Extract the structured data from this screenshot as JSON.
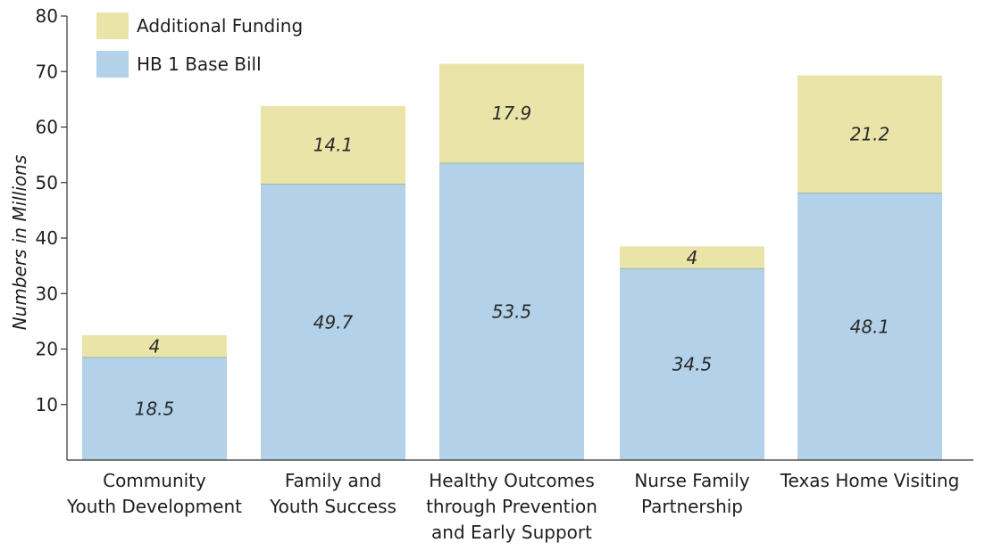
{
  "chart_data": {
    "type": "bar",
    "stacked": true,
    "categories": [
      [
        "Community",
        "Youth Development"
      ],
      [
        "Family and",
        "Youth Success"
      ],
      [
        "Healthy Outcomes",
        "through Prevention",
        "and Early Support"
      ],
      [
        "Nurse Family",
        "Partnership"
      ],
      [
        "Texas Home Visiting"
      ]
    ],
    "series": [
      {
        "name": "HB 1 Base Bill",
        "values": [
          18.5,
          49.7,
          53.5,
          34.5,
          48.1
        ],
        "color": "#b3d1e8"
      },
      {
        "name": "Additional Funding",
        "values": [
          4,
          14.1,
          17.9,
          4,
          21.2
        ],
        "color": "#ebe4a9"
      }
    ],
    "title": "",
    "xlabel": "",
    "ylabel": "Numbers in Millions",
    "ylim": [
      0,
      80
    ],
    "yticks": [
      10,
      20,
      30,
      40,
      50,
      60,
      70,
      80
    ],
    "legend_position": "top-left",
    "legend_order": [
      "Additional Funding",
      "HB 1 Base Bill"
    ],
    "grid": false
  }
}
